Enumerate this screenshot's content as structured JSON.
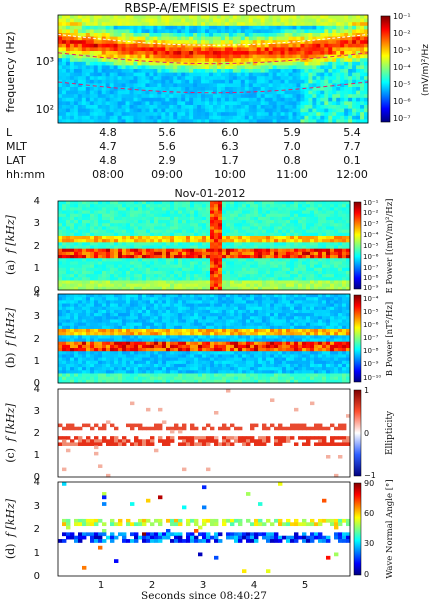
{
  "chart_data": [
    {
      "type": "heatmap",
      "title": "RBSP-A/EMFISIS E² spectrum",
      "ylabel": "frequency (Hz)",
      "yscale": "log",
      "yticks": [
        "10²",
        "10³"
      ],
      "colorbar": {
        "label": "(mV/m)²/Hz",
        "ticks": [
          "10⁻¹",
          "10⁻²",
          "10⁻³",
          "10⁻⁴",
          "10⁻⁵",
          "10⁻⁶",
          "10⁻⁷"
        ],
        "colormap": "jet"
      },
      "ephemeris": {
        "labels": [
          "L",
          "MLT",
          "LAT",
          "hh:mm"
        ],
        "columns": [
          {
            "L": "4.8",
            "MLT": "4.7",
            "LAT": "4.8",
            "hhmm": "08:00"
          },
          {
            "L": "5.6",
            "MLT": "5.6",
            "LAT": "2.9",
            "hhmm": "09:00"
          },
          {
            "L": "6.0",
            "MLT": "6.3",
            "LAT": "1.7",
            "hhmm": "10:00"
          },
          {
            "L": "5.9",
            "MLT": "7.0",
            "LAT": "0.8",
            "hhmm": "11:00"
          },
          {
            "L": "5.4",
            "MLT": "7.7",
            "LAT": "0.1",
            "hhmm": "12:00"
          }
        ]
      },
      "date": "Nov-01-2012"
    },
    {
      "type": "heatmap",
      "panel_label": "(a)",
      "ylabel": "f [kHz]",
      "ylim": [
        0,
        4
      ],
      "yticks": [
        "0",
        "1",
        "2",
        "3",
        "4"
      ],
      "colorbar": {
        "label": "E Power [(mV/m)²/Hz]",
        "ticks": [
          "10⁻¹",
          "10⁻²",
          "10⁻³",
          "10⁻⁴",
          "10⁻⁵",
          "10⁻⁶",
          "10⁻⁷",
          "10⁻⁸",
          "10⁻⁹"
        ],
        "colormap": "jet"
      }
    },
    {
      "type": "heatmap",
      "panel_label": "(b)",
      "ylabel": "f [kHz]",
      "ylim": [
        0,
        4
      ],
      "yticks": [
        "0",
        "1",
        "2",
        "3",
        "4"
      ],
      "colorbar": {
        "label": "B Power [nT²/Hz]",
        "ticks": [
          "10⁻⁴",
          "10⁻⁵",
          "10⁻⁶",
          "10⁻⁷",
          "10⁻⁸",
          "10⁻⁹",
          "10⁻¹⁰"
        ],
        "colormap": "jet"
      }
    },
    {
      "type": "heatmap",
      "panel_label": "(c)",
      "ylabel": "f [kHz]",
      "ylim": [
        0,
        4
      ],
      "yticks": [
        "0",
        "1",
        "2",
        "3",
        "4"
      ],
      "colorbar": {
        "label": "Ellipticity",
        "ticks": [
          "1",
          "0",
          "−1"
        ],
        "colormap": "bwr"
      }
    },
    {
      "type": "heatmap",
      "panel_label": "(d)",
      "ylabel": "f [kHz]",
      "ylim": [
        0,
        4
      ],
      "yticks": [
        "0",
        "1",
        "2",
        "3",
        "4"
      ],
      "xlabel": "Seconds since 08:40:27",
      "xticks": [
        "1",
        "2",
        "3",
        "4",
        "5"
      ],
      "colorbar": {
        "label": "Wave Normal Angle [°]",
        "ticks": [
          "90",
          "60",
          "30",
          "0"
        ],
        "colormap": "jet"
      }
    }
  ]
}
